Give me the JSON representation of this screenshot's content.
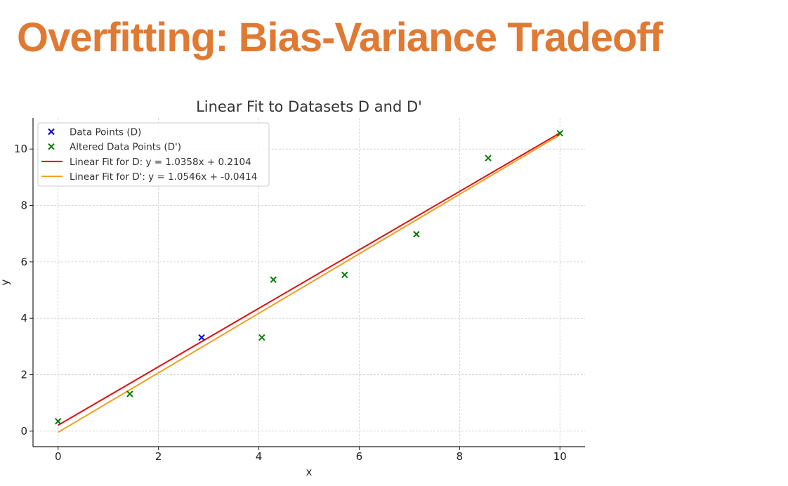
{
  "slide": {
    "title": "Overfitting: Bias-Variance Tradeoff",
    "title_color": "#E07A33"
  },
  "chart_data": {
    "type": "scatter",
    "title": "Linear Fit to Datasets D and D'",
    "xlabel": "x",
    "ylabel": "y",
    "xlim": [
      -0.5,
      10.5
    ],
    "ylim": [
      -0.55,
      11.1
    ],
    "xticks": [
      0,
      2,
      4,
      6,
      8,
      10
    ],
    "yticks": [
      0,
      2,
      4,
      6,
      8,
      10
    ],
    "grid": true,
    "legend_position": "top-left",
    "series": [
      {
        "name": "Data Points (D)",
        "kind": "scatter",
        "marker": "x",
        "color": "#0000CC",
        "points": [
          [
            2.86,
            3.32
          ]
        ]
      },
      {
        "name": "Altered Data Points (D')",
        "kind": "scatter",
        "marker": "x",
        "color": "#007A00",
        "points": [
          [
            0,
            0.35
          ],
          [
            1.43,
            1.32
          ],
          [
            4.06,
            3.32
          ],
          [
            4.29,
            5.37
          ],
          [
            5.71,
            5.54
          ],
          [
            7.14,
            6.98
          ],
          [
            8.57,
            9.68
          ],
          [
            10,
            10.56
          ]
        ]
      },
      {
        "name": "Linear Fit for D: y = 1.0358x + 0.2104",
        "kind": "line",
        "color": "#DD1111",
        "slope": 1.0358,
        "intercept": 0.2104,
        "x_range": [
          0,
          10
        ]
      },
      {
        "name": "Linear Fit for D': y = 1.0546x + -0.0414",
        "kind": "line",
        "color": "#F0A020",
        "slope": 1.0546,
        "intercept": -0.0414,
        "x_range": [
          0,
          10
        ]
      }
    ]
  }
}
